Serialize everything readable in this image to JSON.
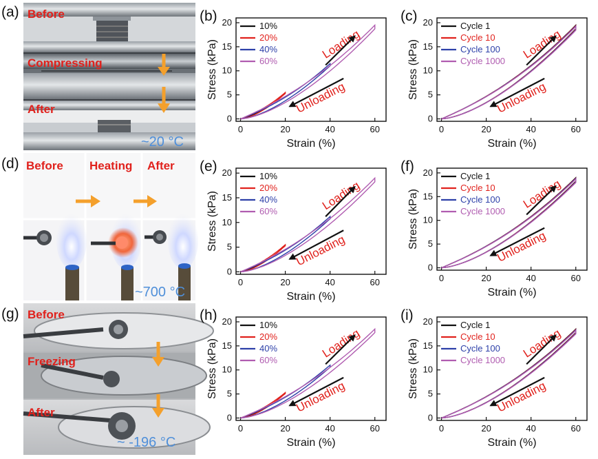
{
  "panels": {
    "a": {
      "letter": "(a)",
      "labels": [
        "Before",
        "Compressing",
        "After"
      ],
      "temperature": "~20 °C"
    },
    "d": {
      "letter": "(d)",
      "labels": [
        "Before",
        "Heating",
        "After"
      ],
      "temperature": "~700 °C"
    },
    "g": {
      "letter": "(g)",
      "labels": [
        "Before",
        "Freezing",
        "After"
      ],
      "temperature": "~ -196 °C"
    }
  },
  "colors": {
    "accent_red": "#e0211c",
    "arrow_orange": "#f4a02c",
    "temp_blue": "#4f8fd9"
  },
  "chart_data": [
    {
      "id": "b",
      "letter": "(b)",
      "type": "line",
      "xlabel": "Strain (%)",
      "ylabel": "Stress (kPa)",
      "xlim": [
        -2,
        65
      ],
      "ylim": [
        -0.5,
        21
      ],
      "xticks": [
        0,
        20,
        40,
        60
      ],
      "yticks": [
        0,
        5,
        10,
        15,
        20
      ],
      "annotations": {
        "loading": "Loading",
        "unloading": "Unloading"
      },
      "series": [
        {
          "name": "10%",
          "color": "#111111",
          "max_strain": 10,
          "max_stress": 2.0,
          "label_color": "#111111"
        },
        {
          "name": "20%",
          "color": "#e0211c",
          "max_strain": 20,
          "max_stress": 5.5,
          "label_color": "#e0211c"
        },
        {
          "name": "40%",
          "color": "#2c3fa8",
          "max_strain": 40,
          "max_stress": 11.5,
          "label_color": "#2c3fa8"
        },
        {
          "name": "60%",
          "color": "#b05cb0",
          "max_strain": 60,
          "max_stress": 19.5,
          "label_color": "#b05cb0"
        }
      ]
    },
    {
      "id": "c",
      "letter": "(c)",
      "type": "line",
      "xlabel": "Strain (%)",
      "ylabel": "Stress (kPa)",
      "xlim": [
        -2,
        65
      ],
      "ylim": [
        -0.5,
        21
      ],
      "xticks": [
        0,
        20,
        40,
        60
      ],
      "yticks": [
        0,
        5,
        10,
        15,
        20
      ],
      "annotations": {
        "loading": "Loading",
        "unloading": "Unloading"
      },
      "series": [
        {
          "name": "Cycle 1",
          "color": "#111111",
          "max_strain": 60,
          "max_stress": 19.5,
          "label_color": "#111111"
        },
        {
          "name": "Cycle 10",
          "color": "#e0211c",
          "max_strain": 60,
          "max_stress": 19.4,
          "label_color": "#e0211c"
        },
        {
          "name": "Cycle 100",
          "color": "#2c3fa8",
          "max_strain": 60,
          "max_stress": 19.3,
          "label_color": "#2c3fa8"
        },
        {
          "name": "Cycle 1000",
          "color": "#b05cb0",
          "max_strain": 60,
          "max_stress": 19.2,
          "label_color": "#b05cb0"
        }
      ]
    },
    {
      "id": "e",
      "letter": "(e)",
      "type": "line",
      "xlabel": "Strain (%)",
      "ylabel": "Stress (kPa)",
      "xlim": [
        -2,
        65
      ],
      "ylim": [
        -0.5,
        21
      ],
      "xticks": [
        0,
        20,
        40,
        60
      ],
      "yticks": [
        0,
        5,
        10,
        15,
        20
      ],
      "annotations": {
        "loading": "Loading",
        "unloading": "Unloading"
      },
      "series": [
        {
          "name": "10%",
          "color": "#111111",
          "max_strain": 10,
          "max_stress": 2.0,
          "label_color": "#111111"
        },
        {
          "name": "20%",
          "color": "#e0211c",
          "max_strain": 20,
          "max_stress": 5.5,
          "label_color": "#e0211c"
        },
        {
          "name": "40%",
          "color": "#2c3fa8",
          "max_strain": 40,
          "max_stress": 11.2,
          "label_color": "#2c3fa8"
        },
        {
          "name": "60%",
          "color": "#b05cb0",
          "max_strain": 60,
          "max_stress": 19.0,
          "label_color": "#b05cb0"
        }
      ]
    },
    {
      "id": "f",
      "letter": "(f)",
      "type": "line",
      "xlabel": "Strain (%)",
      "ylabel": "Stress (kPa)",
      "xlim": [
        -2,
        65
      ],
      "ylim": [
        -0.5,
        21
      ],
      "xticks": [
        0,
        20,
        40,
        60
      ],
      "yticks": [
        0,
        5,
        10,
        15,
        20
      ],
      "annotations": {
        "loading": "Loading",
        "unloading": "Unloading"
      },
      "series": [
        {
          "name": "Cycle 1",
          "color": "#111111",
          "max_strain": 60,
          "max_stress": 19.0,
          "label_color": "#111111"
        },
        {
          "name": "Cycle 10",
          "color": "#e0211c",
          "max_strain": 60,
          "max_stress": 18.9,
          "label_color": "#e0211c"
        },
        {
          "name": "Cycle 100",
          "color": "#2c3fa8",
          "max_strain": 60,
          "max_stress": 18.8,
          "label_color": "#2c3fa8"
        },
        {
          "name": "Cycle 1000",
          "color": "#b05cb0",
          "max_strain": 60,
          "max_stress": 18.7,
          "label_color": "#b05cb0"
        }
      ]
    },
    {
      "id": "h",
      "letter": "(h)",
      "type": "line",
      "xlabel": "Strain (%)",
      "ylabel": "Stress (kPa)",
      "xlim": [
        -2,
        65
      ],
      "ylim": [
        -0.5,
        21
      ],
      "xticks": [
        0,
        20,
        40,
        60
      ],
      "yticks": [
        0,
        5,
        10,
        15,
        20
      ],
      "annotations": {
        "loading": "Loading",
        "unloading": "Unloading"
      },
      "series": [
        {
          "name": "10%",
          "color": "#111111",
          "max_strain": 10,
          "max_stress": 1.8,
          "label_color": "#111111"
        },
        {
          "name": "20%",
          "color": "#e0211c",
          "max_strain": 20,
          "max_stress": 5.3,
          "label_color": "#e0211c"
        },
        {
          "name": "40%",
          "color": "#2c3fa8",
          "max_strain": 40,
          "max_stress": 11.0,
          "label_color": "#2c3fa8"
        },
        {
          "name": "60%",
          "color": "#b05cb0",
          "max_strain": 60,
          "max_stress": 18.5,
          "label_color": "#b05cb0"
        }
      ]
    },
    {
      "id": "i",
      "letter": "(i)",
      "type": "line",
      "xlabel": "Strain (%)",
      "ylabel": "Stress (kPa)",
      "xlim": [
        -2,
        65
      ],
      "ylim": [
        -0.5,
        21
      ],
      "xticks": [
        0,
        20,
        40,
        60
      ],
      "yticks": [
        0,
        5,
        10,
        15,
        20
      ],
      "annotations": {
        "loading": "Loading",
        "unloading": "Unloading"
      },
      "series": [
        {
          "name": "Cycle 1",
          "color": "#111111",
          "max_strain": 60,
          "max_stress": 18.5,
          "label_color": "#111111"
        },
        {
          "name": "Cycle 10",
          "color": "#e0211c",
          "max_strain": 60,
          "max_stress": 18.4,
          "label_color": "#e0211c"
        },
        {
          "name": "Cycle 100",
          "color": "#2c3fa8",
          "max_strain": 60,
          "max_stress": 18.3,
          "label_color": "#2c3fa8"
        },
        {
          "name": "Cycle 1000",
          "color": "#b05cb0",
          "max_strain": 60,
          "max_stress": 18.2,
          "label_color": "#b05cb0"
        }
      ]
    }
  ]
}
